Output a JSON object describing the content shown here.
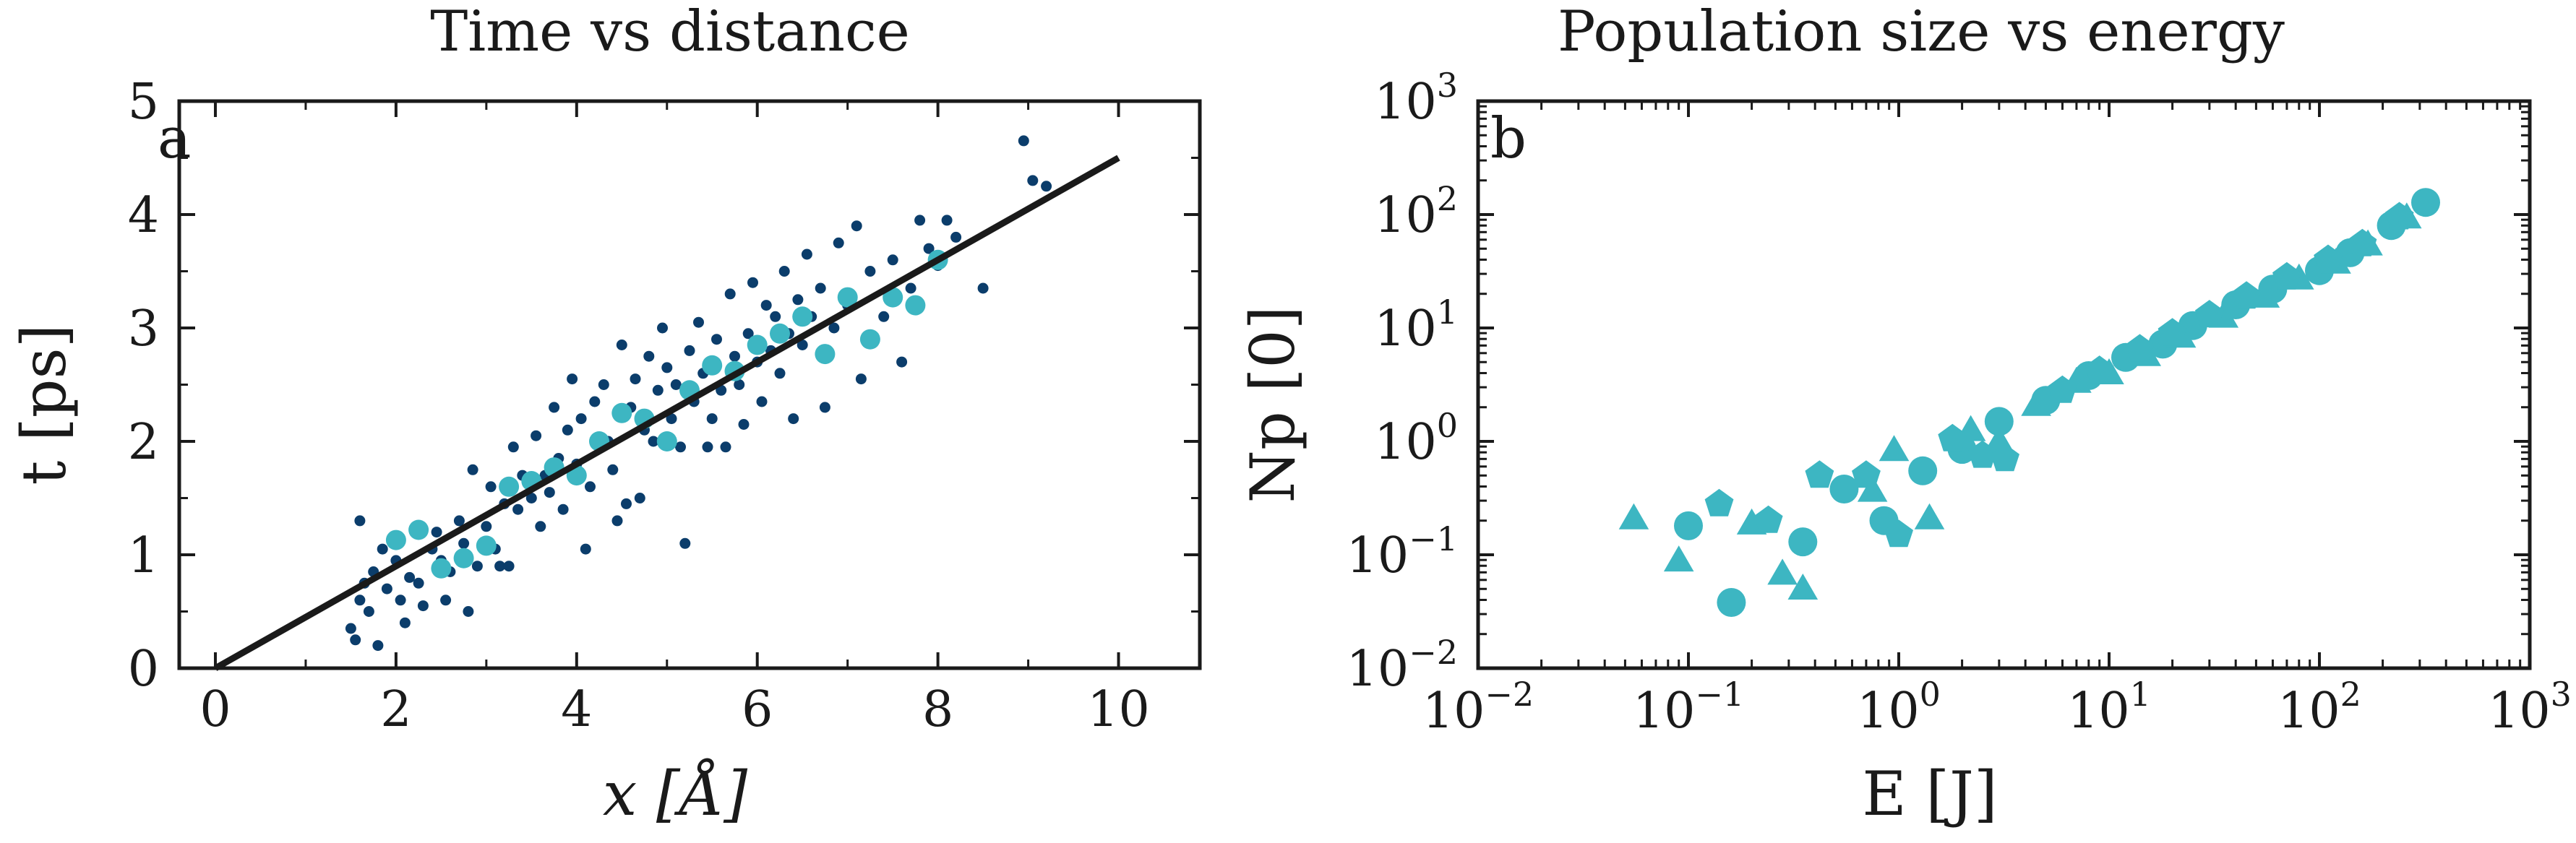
{
  "chart_data": [
    {
      "panel_label": "a",
      "type": "scatter",
      "title": "Time vs distance",
      "xlabel": "x [Å]",
      "ylabel": "t [ps]",
      "xlim": [
        -0.4,
        10.9
      ],
      "ylim": [
        0,
        5
      ],
      "x_ticks": [
        0,
        2,
        4,
        6,
        8,
        10
      ],
      "y_ticks": [
        0,
        1,
        2,
        3,
        4,
        5
      ],
      "grid": false,
      "colors": {
        "small_points": "#0b3d6b",
        "large_points": "#3db6c2",
        "fit_line": "#1a1a1a"
      },
      "fit_line": {
        "x": [
          0,
          10
        ],
        "y": [
          0,
          4.5
        ]
      },
      "series": [
        {
          "marker": "small-circle",
          "color": "#0b3d6b",
          "points": [
            [
              1.5,
              0.35
            ],
            [
              1.55,
              0.25
            ],
            [
              1.6,
              0.6
            ],
            [
              1.6,
              1.3
            ],
            [
              1.65,
              0.75
            ],
            [
              1.7,
              0.5
            ],
            [
              1.75,
              0.85
            ],
            [
              1.8,
              0.2
            ],
            [
              1.85,
              1.05
            ],
            [
              1.9,
              0.7
            ],
            [
              2.0,
              0.95
            ],
            [
              2.05,
              0.6
            ],
            [
              2.1,
              0.4
            ],
            [
              2.15,
              0.8
            ],
            [
              2.25,
              0.75
            ],
            [
              2.3,
              0.55
            ],
            [
              2.4,
              1.05
            ],
            [
              2.45,
              1.2
            ],
            [
              2.5,
              0.95
            ],
            [
              2.55,
              0.6
            ],
            [
              2.6,
              0.85
            ],
            [
              2.7,
              1.3
            ],
            [
              2.75,
              1.1
            ],
            [
              2.8,
              0.5
            ],
            [
              2.85,
              1.75
            ],
            [
              2.9,
              0.9
            ],
            [
              3.0,
              1.25
            ],
            [
              3.05,
              1.6
            ],
            [
              3.1,
              1.05
            ],
            [
              3.15,
              0.9
            ],
            [
              3.2,
              1.45
            ],
            [
              3.25,
              0.9
            ],
            [
              3.3,
              1.95
            ],
            [
              3.35,
              1.4
            ],
            [
              3.4,
              1.7
            ],
            [
              3.5,
              1.5
            ],
            [
              3.55,
              2.05
            ],
            [
              3.6,
              1.25
            ],
            [
              3.65,
              1.7
            ],
            [
              3.7,
              1.55
            ],
            [
              3.75,
              2.3
            ],
            [
              3.8,
              1.85
            ],
            [
              3.85,
              1.4
            ],
            [
              3.9,
              2.1
            ],
            [
              3.95,
              2.55
            ],
            [
              4.0,
              1.8
            ],
            [
              4.05,
              2.2
            ],
            [
              4.1,
              1.05
            ],
            [
              4.15,
              1.6
            ],
            [
              4.2,
              2.35
            ],
            [
              4.25,
              1.95
            ],
            [
              4.3,
              2.5
            ],
            [
              4.35,
              2.0
            ],
            [
              4.4,
              1.75
            ],
            [
              4.45,
              1.3
            ],
            [
              4.5,
              2.85
            ],
            [
              4.55,
              1.45
            ],
            [
              4.6,
              2.3
            ],
            [
              4.65,
              2.55
            ],
            [
              4.7,
              1.5
            ],
            [
              4.75,
              2.1
            ],
            [
              4.8,
              2.75
            ],
            [
              4.85,
              2.0
            ],
            [
              4.9,
              2.45
            ],
            [
              4.95,
              3.0
            ],
            [
              5.0,
              2.65
            ],
            [
              5.05,
              2.2
            ],
            [
              5.1,
              2.5
            ],
            [
              5.15,
              1.95
            ],
            [
              5.2,
              1.1
            ],
            [
              5.25,
              2.8
            ],
            [
              5.3,
              2.35
            ],
            [
              5.35,
              3.05
            ],
            [
              5.4,
              2.6
            ],
            [
              5.45,
              1.95
            ],
            [
              5.5,
              2.2
            ],
            [
              5.55,
              2.9
            ],
            [
              5.6,
              2.45
            ],
            [
              5.65,
              1.95
            ],
            [
              5.7,
              3.3
            ],
            [
              5.75,
              2.75
            ],
            [
              5.8,
              2.5
            ],
            [
              5.85,
              2.15
            ],
            [
              5.9,
              2.95
            ],
            [
              5.95,
              3.4
            ],
            [
              6.0,
              2.7
            ],
            [
              6.05,
              2.35
            ],
            [
              6.1,
              3.2
            ],
            [
              6.15,
              2.8
            ],
            [
              6.2,
              3.1
            ],
            [
              6.25,
              2.6
            ],
            [
              6.3,
              3.5
            ],
            [
              6.35,
              2.95
            ],
            [
              6.4,
              2.2
            ],
            [
              6.45,
              3.25
            ],
            [
              6.5,
              2.85
            ],
            [
              6.55,
              3.65
            ],
            [
              6.6,
              3.1
            ],
            [
              6.7,
              3.35
            ],
            [
              6.75,
              2.3
            ],
            [
              6.85,
              3.0
            ],
            [
              6.9,
              3.75
            ],
            [
              7.0,
              3.2
            ],
            [
              7.1,
              3.9
            ],
            [
              7.15,
              2.55
            ],
            [
              7.25,
              3.5
            ],
            [
              7.4,
              3.1
            ],
            [
              7.5,
              3.6
            ],
            [
              7.6,
              2.7
            ],
            [
              7.7,
              3.35
            ],
            [
              7.8,
              3.95
            ],
            [
              7.9,
              3.7
            ],
            [
              8.0,
              3.55
            ],
            [
              8.1,
              3.95
            ],
            [
              8.2,
              3.8
            ],
            [
              8.5,
              3.35
            ],
            [
              8.95,
              4.65
            ],
            [
              9.05,
              4.3
            ],
            [
              9.2,
              4.25
            ]
          ]
        },
        {
          "marker": "large-circle",
          "color": "#3db6c2",
          "points": [
            [
              2.0,
              1.13
            ],
            [
              2.25,
              1.22
            ],
            [
              2.5,
              0.88
            ],
            [
              2.75,
              0.97
            ],
            [
              3.0,
              1.08
            ],
            [
              3.25,
              1.6
            ],
            [
              3.5,
              1.65
            ],
            [
              3.75,
              1.77
            ],
            [
              4.0,
              1.7
            ],
            [
              4.25,
              2.0
            ],
            [
              4.5,
              2.25
            ],
            [
              4.75,
              2.2
            ],
            [
              5.0,
              2.0
            ],
            [
              5.25,
              2.45
            ],
            [
              5.5,
              2.67
            ],
            [
              5.75,
              2.62
            ],
            [
              6.0,
              2.85
            ],
            [
              6.25,
              2.95
            ],
            [
              6.5,
              3.1
            ],
            [
              6.75,
              2.77
            ],
            [
              7.0,
              3.27
            ],
            [
              7.25,
              2.9
            ],
            [
              7.5,
              3.27
            ],
            [
              7.75,
              3.2
            ],
            [
              8.0,
              3.6
            ]
          ]
        }
      ]
    },
    {
      "panel_label": "b",
      "type": "scatter",
      "title": "Population size vs energy",
      "xlabel": "E [J]",
      "ylabel": "Np [0]",
      "x_scale": "log",
      "y_scale": "log",
      "xlim": [
        0.01,
        1000
      ],
      "ylim": [
        0.01,
        1000
      ],
      "x_ticks": [
        {
          "base": "10",
          "exp": "−2"
        },
        {
          "base": "10",
          "exp": "−1"
        },
        {
          "base": "10",
          "exp": "0"
        },
        {
          "base": "10",
          "exp": "1"
        },
        {
          "base": "10",
          "exp": "2"
        },
        {
          "base": "10",
          "exp": "3"
        }
      ],
      "y_ticks": [
        {
          "base": "10",
          "exp": "−2"
        },
        {
          "base": "10",
          "exp": "−1"
        },
        {
          "base": "10",
          "exp": "0"
        },
        {
          "base": "10",
          "exp": "1"
        },
        {
          "base": "10",
          "exp": "2"
        },
        {
          "base": "10",
          "exp": "3"
        }
      ],
      "grid": false,
      "colors": {
        "markers": "#3db6c2"
      },
      "series": [
        {
          "marker": "circle",
          "color": "#3db6c2",
          "points": [
            [
              0.1,
              0.18
            ],
            [
              0.16,
              0.038
            ],
            [
              0.35,
              0.13
            ],
            [
              0.55,
              0.38
            ],
            [
              0.85,
              0.2
            ],
            [
              1.3,
              0.55
            ],
            [
              2.0,
              0.85
            ],
            [
              3.0,
              1.5
            ],
            [
              5.0,
              2.3
            ],
            [
              8.0,
              3.8
            ],
            [
              12,
              5.5
            ],
            [
              18,
              7.2
            ],
            [
              25,
              10.5
            ],
            [
              40,
              16
            ],
            [
              60,
              22
            ],
            [
              100,
              32
            ],
            [
              140,
              46
            ],
            [
              220,
              80
            ],
            [
              320,
              128
            ]
          ]
        },
        {
          "marker": "triangle",
          "color": "#3db6c2",
          "points": [
            [
              0.055,
              0.2
            ],
            [
              0.09,
              0.085
            ],
            [
              0.2,
              0.18
            ],
            [
              0.28,
              0.065
            ],
            [
              0.35,
              0.048
            ],
            [
              0.75,
              0.35
            ],
            [
              0.95,
              0.8
            ],
            [
              1.4,
              0.2
            ],
            [
              2.2,
              1.2
            ],
            [
              3.0,
              0.95
            ],
            [
              4.5,
              2.0
            ],
            [
              7.0,
              3.2
            ],
            [
              10,
              3.8
            ],
            [
              15,
              5.5
            ],
            [
              22,
              8.0
            ],
            [
              35,
              12
            ],
            [
              55,
              18
            ],
            [
              80,
              26
            ],
            [
              120,
              36
            ],
            [
              170,
              52
            ],
            [
              260,
              90
            ]
          ]
        },
        {
          "marker": "pentagon",
          "color": "#3db6c2",
          "points": [
            [
              0.14,
              0.28
            ],
            [
              0.24,
              0.2
            ],
            [
              0.42,
              0.5
            ],
            [
              0.7,
              0.5
            ],
            [
              1.0,
              0.15
            ],
            [
              1.8,
              1.05
            ],
            [
              2.5,
              0.75
            ],
            [
              3.2,
              0.7
            ],
            [
              6.0,
              2.8
            ],
            [
              9.0,
              4.2
            ],
            [
              14,
              6.5
            ],
            [
              20,
              9.0
            ],
            [
              30,
              13
            ],
            [
              45,
              19
            ],
            [
              70,
              28
            ],
            [
              110,
              40
            ],
            [
              160,
              55
            ],
            [
              240,
              95
            ]
          ]
        }
      ]
    }
  ]
}
